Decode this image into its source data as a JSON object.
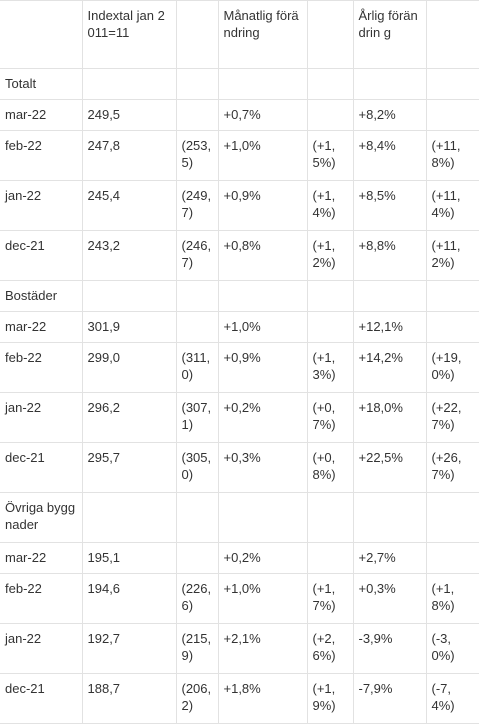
{
  "header": {
    "index": "Indextal jan 2011=11",
    "monthly": "Månatlig förändring",
    "yearly": "Årlig förändrin g"
  },
  "sections": [
    {
      "title": "Totalt",
      "rows": [
        {
          "period": "mar-22",
          "index": "249,5",
          "index_prev": "",
          "monthly": "+0,7%",
          "monthly_prev": "",
          "yearly": "+8,2%",
          "yearly_prev": ""
        },
        {
          "period": "feb-22",
          "index": "247,8",
          "index_prev": "(253,5)",
          "monthly": "+1,0%",
          "monthly_prev": "(+1,5%)",
          "yearly": "+8,4%",
          "yearly_prev": "(+11,8%)"
        },
        {
          "period": "jan-22",
          "index": "245,4",
          "index_prev": "(249,7)",
          "monthly": "+0,9%",
          "monthly_prev": "(+1,4%)",
          "yearly": "+8,5%",
          "yearly_prev": "(+11,4%)"
        },
        {
          "period": "dec-21",
          "index": "243,2",
          "index_prev": "(246,7)",
          "monthly": "+0,8%",
          "monthly_prev": "(+1,2%)",
          "yearly": "+8,8%",
          "yearly_prev": "(+11,2%)"
        }
      ]
    },
    {
      "title": "Bostäder",
      "rows": [
        {
          "period": "mar-22",
          "index": "301,9",
          "index_prev": "",
          "monthly": "+1,0%",
          "monthly_prev": "",
          "yearly": "+12,1%",
          "yearly_prev": ""
        },
        {
          "period": "feb-22",
          "index": "299,0",
          "index_prev": "(311,0)",
          "monthly": "+0,9%",
          "monthly_prev": "(+1,3%)",
          "yearly": "+14,2%",
          "yearly_prev": "(+19,0%)"
        },
        {
          "period": "jan-22",
          "index": "296,2",
          "index_prev": "(307,1)",
          "monthly": "+0,2%",
          "monthly_prev": "(+0,7%)",
          "yearly": "+18,0%",
          "yearly_prev": "(+22,7%)"
        },
        {
          "period": "dec-21",
          "index": "295,7",
          "index_prev": "(305,0)",
          "monthly": "+0,3%",
          "monthly_prev": "(+0,8%)",
          "yearly": "+22,5%",
          "yearly_prev": "(+26,7%)"
        }
      ]
    },
    {
      "title": "Övriga byggnader",
      "rows": [
        {
          "period": "mar-22",
          "index": "195,1",
          "index_prev": "",
          "monthly": "+0,2%",
          "monthly_prev": "",
          "yearly": "+2,7%",
          "yearly_prev": ""
        },
        {
          "period": "feb-22",
          "index": "194,6",
          "index_prev": "(226,6)",
          "monthly": "+1,0%",
          "monthly_prev": "(+1,7%)",
          "yearly": "+0,3%",
          "yearly_prev": "(+1,8%)"
        },
        {
          "period": "jan-22",
          "index": "192,7",
          "index_prev": "(215,9)",
          "monthly": "+2,1%",
          "monthly_prev": "(+2,6%)",
          "yearly": "-3,9%",
          "yearly_prev": "(-3,0%)"
        },
        {
          "period": "dec-21",
          "index": "188,7",
          "index_prev": "(206,2)",
          "monthly": "+1,8%",
          "monthly_prev": "(+1,9%)",
          "yearly": "-7,9%",
          "yearly_prev": "(-7,4%)"
        }
      ]
    }
  ]
}
